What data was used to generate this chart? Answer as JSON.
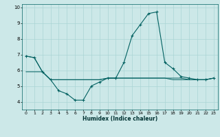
{
  "xlabel": "Humidex (Indice chaleur)",
  "background_color": "#cce8e8",
  "grid_color": "#aad4d4",
  "line_color": "#006060",
  "xlim": [
    -0.5,
    23.5
  ],
  "ylim": [
    3.5,
    10.2
  ],
  "yticks": [
    4,
    5,
    6,
    7,
    8,
    9,
    10
  ],
  "xticks": [
    0,
    1,
    2,
    3,
    4,
    5,
    6,
    7,
    8,
    9,
    10,
    11,
    12,
    13,
    14,
    15,
    16,
    17,
    18,
    19,
    20,
    21,
    22,
    23
  ],
  "series": [
    [
      6.9,
      6.8,
      5.9,
      5.4,
      4.7,
      4.5,
      4.1,
      4.1,
      5.0,
      5.25,
      5.5,
      5.5,
      6.5,
      8.2,
      8.9,
      9.6,
      9.7,
      6.5,
      6.1,
      5.6,
      5.5,
      5.4,
      5.4,
      5.5
    ],
    [
      6.9,
      6.8,
      5.9,
      5.4,
      5.4,
      5.4,
      5.4,
      5.4,
      5.4,
      5.4,
      5.5,
      5.5,
      5.5,
      5.5,
      5.5,
      5.5,
      5.5,
      5.5,
      5.5,
      5.5,
      5.4,
      5.4,
      5.4,
      5.5
    ],
    [
      5.9,
      5.9,
      5.9,
      5.4,
      5.4,
      5.4,
      5.4,
      5.4,
      5.4,
      5.4,
      5.5,
      5.5,
      5.5,
      5.5,
      5.5,
      5.5,
      5.5,
      5.5,
      5.4,
      5.4,
      5.4,
      5.4,
      5.4,
      5.5
    ]
  ]
}
